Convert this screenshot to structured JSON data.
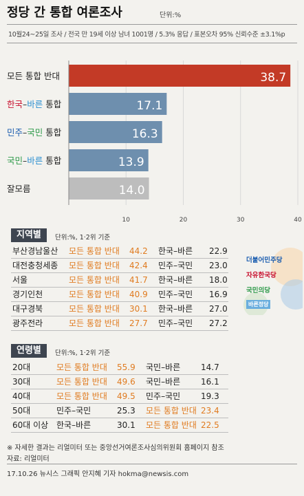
{
  "header": {
    "title": "정당 간 통합 여론조사",
    "unit": "단위:%",
    "survey_info": "10월24~25일 조사 / 전국 만 19세 이상 남녀 1001명 / 5.3% 응답 / 표본오차 95% 신뢰수준 ±3.1%p"
  },
  "chart_data": {
    "type": "bar",
    "orientation": "horizontal",
    "categories": [
      "모든 통합 반대",
      "한국-바른 통합",
      "민주-국민 통합",
      "국민-바른 통합",
      "잘모름"
    ],
    "values": [
      38.7,
      17.1,
      16.3,
      13.9,
      14.0
    ],
    "value_labels": [
      "38.7",
      "17.1",
      "16.3",
      "13.9",
      "14.0"
    ],
    "colors": [
      "#c33a26",
      "#6e8fae",
      "#6e8fae",
      "#6e8fae",
      "#bdbdbd"
    ],
    "xticks": [
      "10",
      "20",
      "30",
      "40"
    ],
    "xlim": [
      0,
      40
    ],
    "category_parts": [
      [
        {
          "t": "모든 통합 반대",
          "c": "#222222"
        }
      ],
      [
        {
          "t": "한국",
          "c": "#c8102e"
        },
        {
          "t": "–",
          "c": "#222222"
        },
        {
          "t": "바른",
          "c": "#2a8fd0"
        },
        {
          "t": " 통합",
          "c": "#222222"
        }
      ],
      [
        {
          "t": "민주",
          "c": "#1d5fb0"
        },
        {
          "t": "–",
          "c": "#222222"
        },
        {
          "t": "국민",
          "c": "#2e9a4a"
        },
        {
          "t": " 통합",
          "c": "#222222"
        }
      ],
      [
        {
          "t": "국민",
          "c": "#2e9a4a"
        },
        {
          "t": "–",
          "c": "#222222"
        },
        {
          "t": "바른",
          "c": "#2a8fd0"
        },
        {
          "t": " 통합",
          "c": "#222222"
        }
      ],
      [
        {
          "t": "잘모름",
          "c": "#222222"
        }
      ]
    ]
  },
  "region": {
    "heading": "지역별",
    "note": "단위:%, 1·2위 기준",
    "rows": [
      {
        "region": "부산경남울산",
        "first": "모든 통합 반대",
        "first_val": "44.2",
        "second": "한국–바른",
        "second_val": "22.9"
      },
      {
        "region": "대전충청세종",
        "first": "모든 통합 반대",
        "first_val": "42.4",
        "second": "민주–국민",
        "second_val": "23.0"
      },
      {
        "region": "서울",
        "first": "모든 통합 반대",
        "first_val": "41.7",
        "second": "한국–바른",
        "second_val": "18.0"
      },
      {
        "region": "경기인천",
        "first": "모든 통합 반대",
        "first_val": "40.9",
        "second": "민주–국민",
        "second_val": "16.9"
      },
      {
        "region": "대구경북",
        "first": "모든 통합 반대",
        "first_val": "30.1",
        "second": "한국–바른",
        "second_val": "27.0"
      },
      {
        "region": "광주전라",
        "first": "모든 통합 반대",
        "first_val": "27.7",
        "second": "민주–국민",
        "second_val": "27.2"
      }
    ]
  },
  "age": {
    "heading": "연령별",
    "note": "단위:%, 1·2위 기준",
    "rows": [
      {
        "age": "20대",
        "first": "모든 통합 반대",
        "first_val": "55.9",
        "second": "국민–바른",
        "second_val": "14.7",
        "oppose_first": true
      },
      {
        "age": "30대",
        "first": "모든 통합 반대",
        "first_val": "49.6",
        "second": "국민–바른",
        "second_val": "16.1",
        "oppose_first": true
      },
      {
        "age": "40대",
        "first": "모든 통합 반대",
        "first_val": "49.5",
        "second": "민주–국민",
        "second_val": "19.3",
        "oppose_first": true
      },
      {
        "age": "50대",
        "first": "민주–국민",
        "first_val": "25.3",
        "second": "모든 통합 반대",
        "second_val": "23.4",
        "oppose_first": false
      },
      {
        "age": "60대 이상",
        "first": "한국–바른",
        "first_val": "30.1",
        "second": "모든 통합 반대",
        "second_val": "22.5",
        "oppose_first": false
      }
    ]
  },
  "logos": {
    "minju": "더불어민주당",
    "jayu": "자유한국당",
    "gukmin": "국민의당",
    "bareun": "바른정당"
  },
  "footer": {
    "note": "※ 자세한 결과는 리얼미터 또는 중앙선거여론조사심의위원회 홈페이지 참조",
    "source": "자료: 리얼미터",
    "credit": "17.10.26 뉴시스 그래픽 안지혜 기자 hokma@newsis.com"
  }
}
